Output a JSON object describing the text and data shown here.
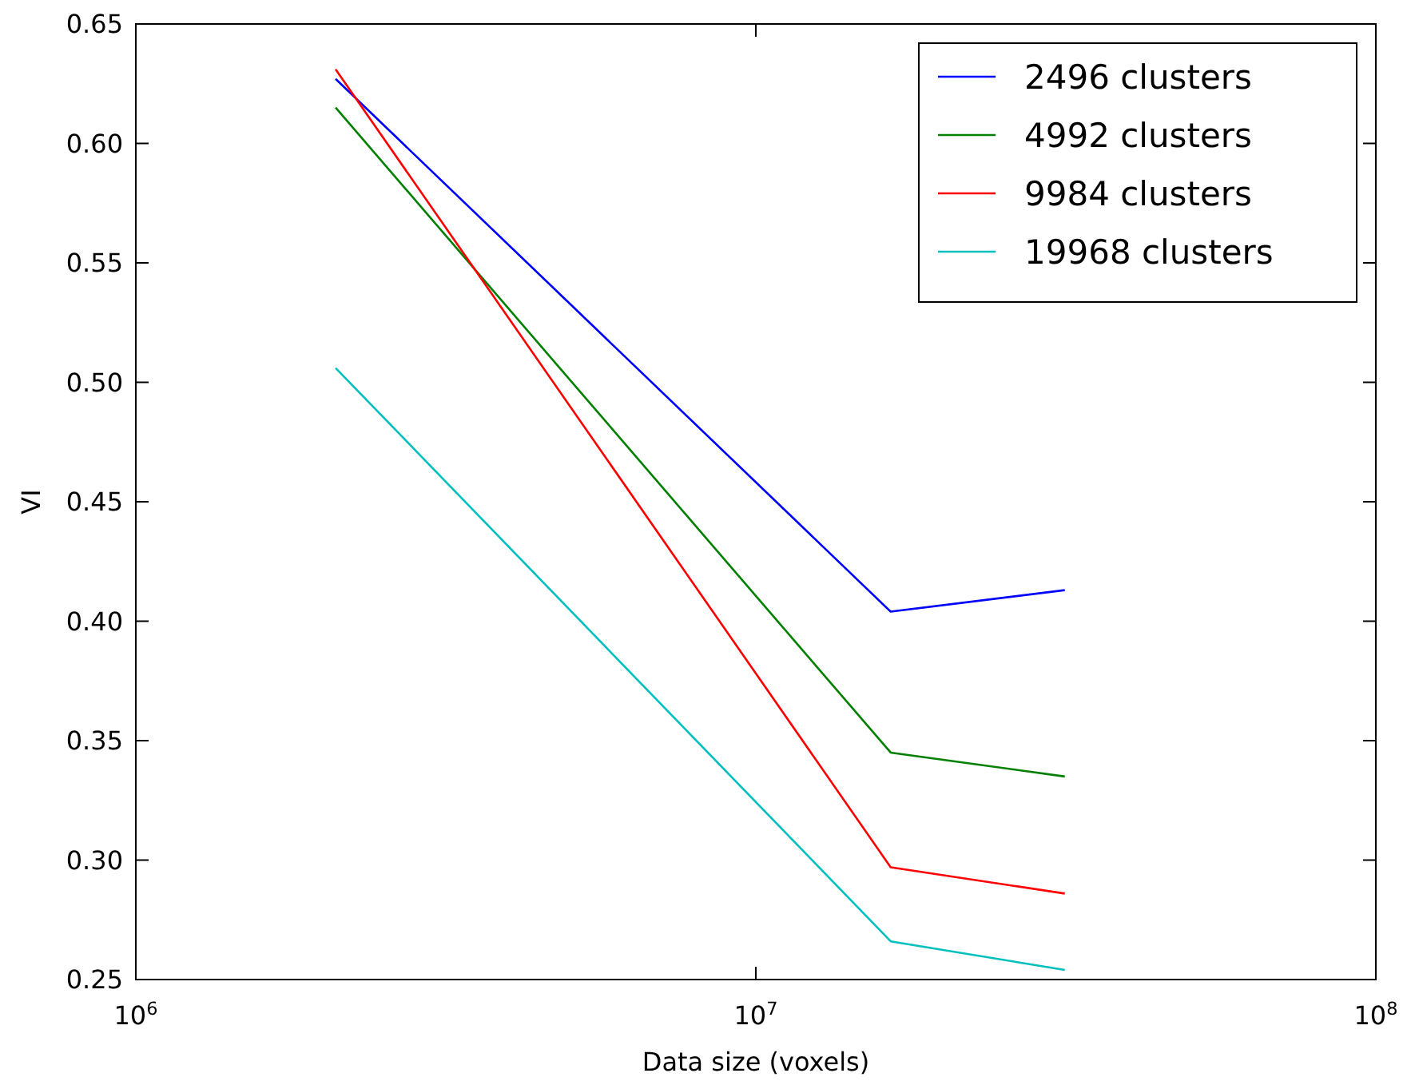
{
  "chart_data": {
    "type": "line",
    "xlabel": "Data size (voxels)",
    "ylabel": "VI",
    "log": "x",
    "x": [
      2100000,
      16500000,
      31500000
    ],
    "xlim": [
      1000000,
      100000000
    ],
    "xticks": [
      {
        "value": 1000000,
        "label": "10$^{6}$"
      },
      {
        "value": 10000000,
        "label": "10$^{7}$"
      },
      {
        "value": 100000000,
        "label": "10$^{8}$"
      }
    ],
    "ylim": [
      0.25,
      0.65
    ],
    "yticks": [
      0.25,
      {
        "value": 0.3,
        "label": "0.30"
      },
      0.35,
      {
        "value": 0.4,
        "label": "0.40"
      },
      0.45,
      {
        "value": 0.5,
        "label": "0.50"
      },
      0.55,
      {
        "value": 0.6,
        "label": "0.60"
      },
      0.65
    ],
    "grid": false,
    "legend": "top right",
    "marker": "none",
    "line_style": "solid",
    "series": [
      {
        "name": "2496 clusters",
        "color": "#0000ff",
        "values": [
          0.627,
          0.404,
          0.413
        ]
      },
      {
        "name": "4992 clusters",
        "color": "#008000",
        "values": [
          0.615,
          0.345,
          0.335
        ]
      },
      {
        "name": "9984 clusters",
        "color": "#ff0000",
        "values": [
          0.631,
          0.297,
          0.286
        ]
      },
      {
        "name": "19968 clusters",
        "color": "#00bfbf",
        "values": [
          0.506,
          0.266,
          0.254
        ]
      }
    ]
  }
}
